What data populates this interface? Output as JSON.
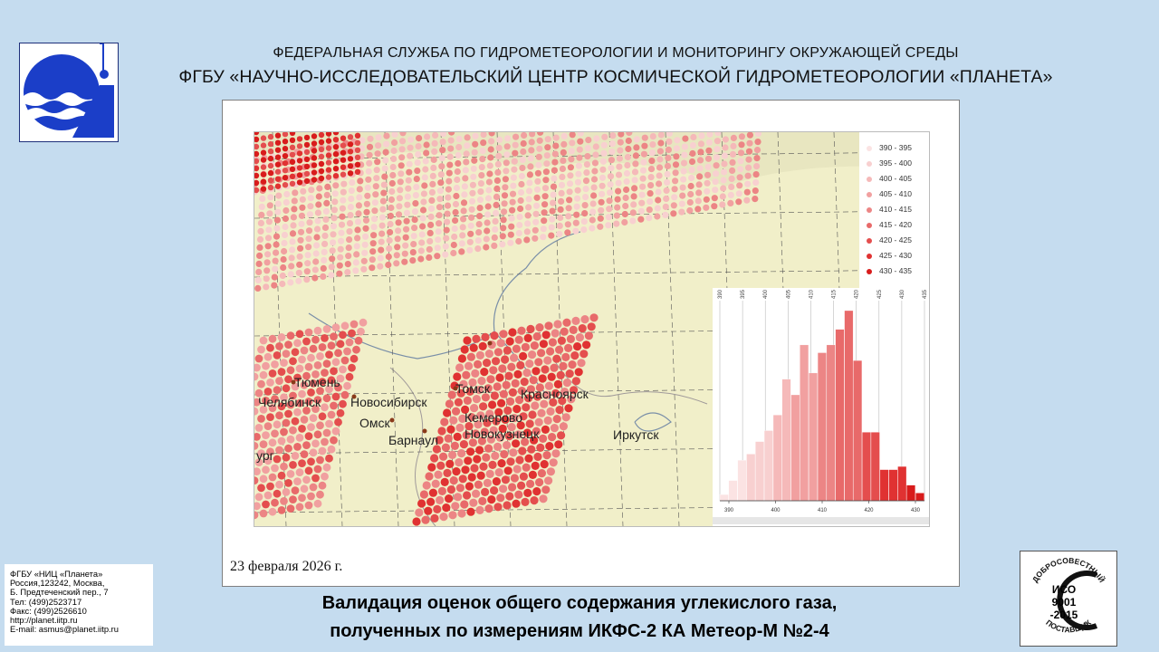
{
  "header": {
    "line1": "ФЕДЕРАЛЬНАЯ СЛУЖБА ПО ГИДРОМЕТЕОРОЛОГИИ И МОНИТОРИНГУ ОКРУЖАЮЩЕЙ СРЕДЫ",
    "line2": "ФГБУ «НАУЧНО-ИССЛЕДОВАТЕЛЬСКИЙ ЦЕНТР КОСМИЧЕСКОЙ ГИДРОМЕТЕОРОЛОГИИ «ПЛАНЕТА»"
  },
  "logo_icon": "planeta-logo",
  "map": {
    "cities": [
      "Тюмень",
      "Челябинск",
      "Новосибирск",
      "Омск",
      "Барнаул",
      "Томск",
      "Красноярск",
      "Кемерово",
      "Новокузнецк",
      "Иркутск",
      "ург"
    ],
    "legend": [
      {
        "label": "390 - 395",
        "color": "#fbe3e3"
      },
      {
        "label": "395 - 400",
        "color": "#f8d0d0"
      },
      {
        "label": "400 - 405",
        "color": "#f5b9b9"
      },
      {
        "label": "405 - 410",
        "color": "#f1a0a0"
      },
      {
        "label": "410 - 415",
        "color": "#ec8585"
      },
      {
        "label": "415 - 420",
        "color": "#e86a6a"
      },
      {
        "label": "420 - 425",
        "color": "#e44e4e"
      },
      {
        "label": "425 - 430",
        "color": "#e03232"
      },
      {
        "label": "430 - 435",
        "color": "#d81c1c"
      }
    ],
    "histogram": {
      "x_ticks": [
        "390",
        "400",
        "410",
        "420",
        "430"
      ],
      "top_ticks": [
        "390",
        "395",
        "400",
        "405",
        "410",
        "415",
        "420",
        "425",
        "430",
        "435"
      ],
      "values": [
        4,
        13,
        26,
        30,
        38,
        45,
        55,
        78,
        68,
        100,
        82,
        95,
        100,
        110,
        122,
        90,
        44,
        44,
        20,
        20,
        22,
        10,
        5
      ]
    }
  },
  "date": "23 февраля 2026 г.",
  "title": {
    "line1": "Валидация оценок общего содержания углекислого газа,",
    "line2": "полученных по измерениям ИКФС-2 КА Метеор-М №2-4"
  },
  "contacts": [
    "ФГБУ «НИЦ «Планета»",
    "Россия,123242, Москва,",
    "Б. Предтеченский пер., 7",
    "Тел:   (499)2523717",
    "Факс: (499)2526610",
    "http://planet.iitp.ru",
    "E-mail: asmus@planet.iitp.ru"
  ],
  "certificate": {
    "top": "ДОБРОСОВЕСТНЫЙ",
    "bottom": "ПОСТАВЩИК",
    "line1": "ИСО",
    "line2": "9001",
    "line3": "-2015"
  }
}
